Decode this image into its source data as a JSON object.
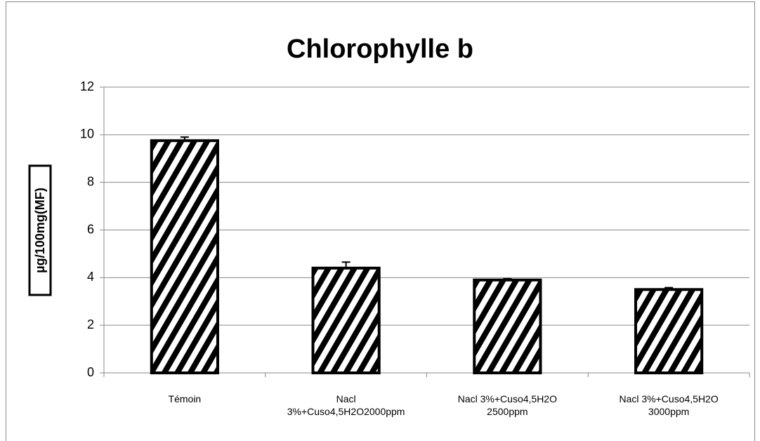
{
  "chart_data": {
    "type": "bar",
    "title": "Chlorophylle b",
    "y_label": "µg/100mg(MF)",
    "categories": [
      "Témoin",
      "Nacl 3%+Cuso4,5H2O2000ppm",
      "Nacl 3%+Cuso4,5H2O 2500ppm",
      "Nacl 3%+Cuso4,5H2O 3000ppm"
    ],
    "values": [
      9.75,
      4.4,
      3.9,
      3.5
    ],
    "errors": [
      0.15,
      0.25,
      0.05,
      0.08
    ],
    "color": "#000000",
    "ylim": [
      0,
      12
    ],
    "yticks": [
      0,
      2,
      4,
      6,
      8,
      10,
      12
    ],
    "grid": true
  }
}
